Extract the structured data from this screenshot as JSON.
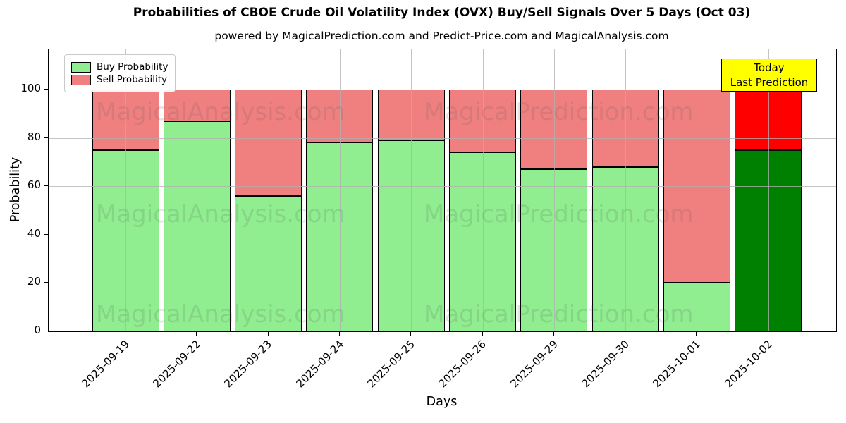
{
  "title": "Probabilities of CBOE Crude Oil Volatility Index (OVX) Buy/Sell Signals Over 5 Days (Oct 03)",
  "subtitle": "powered by MagicalPrediction.com and Predict-Price.com and MagicalAnalysis.com",
  "legend": {
    "buy_label": "Buy Probability",
    "sell_label": "Sell Probability"
  },
  "annotation": {
    "line1": "Today",
    "line2": "Last Prediction",
    "bg": "#FFFF00"
  },
  "watermarks": [
    "MagicalAnalysis.com",
    "MagicalPrediction.com"
  ],
  "chart_data": {
    "type": "bar",
    "stacked": true,
    "title": "Probabilities of CBOE Crude Oil Volatility Index (OVX) Buy/Sell Signals Over 5 Days (Oct 03)",
    "xlabel": "Days",
    "ylabel": "Probability",
    "categories": [
      "2025-09-19",
      "2025-09-22",
      "2025-09-23",
      "2025-09-24",
      "2025-09-25",
      "2025-09-26",
      "2025-09-29",
      "2025-09-30",
      "2025-10-01",
      "2025-10-02"
    ],
    "series": [
      {
        "name": "Buy Probability",
        "color": "#90EE90",
        "values": [
          75,
          87,
          56,
          78,
          79,
          74,
          67,
          68,
          20,
          75
        ]
      },
      {
        "name": "Sell Probability",
        "color": "#F08080",
        "values": [
          25,
          13,
          44,
          22,
          21,
          26,
          33,
          32,
          80,
          25
        ]
      }
    ],
    "today_index": 9,
    "today_colors": {
      "buy": "#008000",
      "sell": "#FF0000"
    },
    "yticks": [
      0,
      20,
      40,
      60,
      80,
      100
    ],
    "ylim": [
      0,
      116.6
    ],
    "dashed_line_y": 110,
    "grid": true,
    "grid_color": "#b0b0b0",
    "bar_edge_color": "#000000",
    "legend_position": "upper left"
  }
}
